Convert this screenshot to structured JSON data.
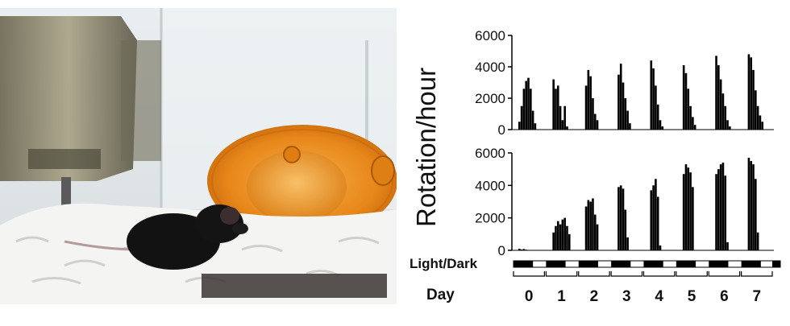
{
  "photo": {
    "description_icon": "mouse-in-cage-with-running-wheel-photo"
  },
  "colors": {
    "bars": "#000000",
    "light": "#ffffff",
    "dark": "#000000",
    "wheel": "#e88a1a"
  },
  "chart_data": {
    "type": "bar",
    "ylabel": "Rotation/hour",
    "row_label_lightdark": "Light/Dark",
    "row_label_day": "Day",
    "days": [
      "0",
      "1",
      "2",
      "3",
      "4",
      "5",
      "6",
      "7"
    ],
    "yticks": [
      "0",
      "2000",
      "4000",
      "6000"
    ],
    "ylim": [
      0,
      6000
    ],
    "panels": [
      {
        "name": "top",
        "day_bursts": [
          [
            500,
            1500,
            2600,
            3100,
            3300,
            2600,
            1200,
            400
          ],
          [
            3200,
            2600,
            2800,
            1500,
            600,
            1500,
            200
          ],
          [
            2800,
            3800,
            3400,
            2000,
            1000,
            600
          ],
          [
            3500,
            4200,
            3000,
            2000,
            1200,
            400
          ],
          [
            4400,
            3900,
            2800,
            1600,
            600,
            200
          ],
          [
            4100,
            3600,
            2600,
            1500,
            800,
            300
          ],
          [
            4700,
            4100,
            3200,
            2300,
            1500,
            600,
            200
          ],
          [
            4800,
            4600,
            3800,
            2500,
            1500,
            900,
            500
          ]
        ]
      },
      {
        "name": "bottom",
        "day_bursts": [
          [
            100,
            50,
            80,
            40
          ],
          [
            1100,
            1500,
            1800,
            1600,
            1900,
            2000,
            1500,
            1000
          ],
          [
            2700,
            3100,
            3000,
            3200,
            2200,
            1600
          ],
          [
            3900,
            4000,
            3800,
            2500,
            800
          ],
          [
            3700,
            4000,
            4400,
            3300,
            300
          ],
          [
            4700,
            5300,
            5100,
            4800,
            3900
          ],
          [
            4700,
            5000,
            5300,
            5400,
            4600,
            500
          ],
          [
            5700,
            5500,
            5300,
            4400,
            1100
          ]
        ]
      }
    ],
    "light_dark": "alternating 12h light (white) / 12h dark (black) bar spanning day 0 to day 7"
  }
}
